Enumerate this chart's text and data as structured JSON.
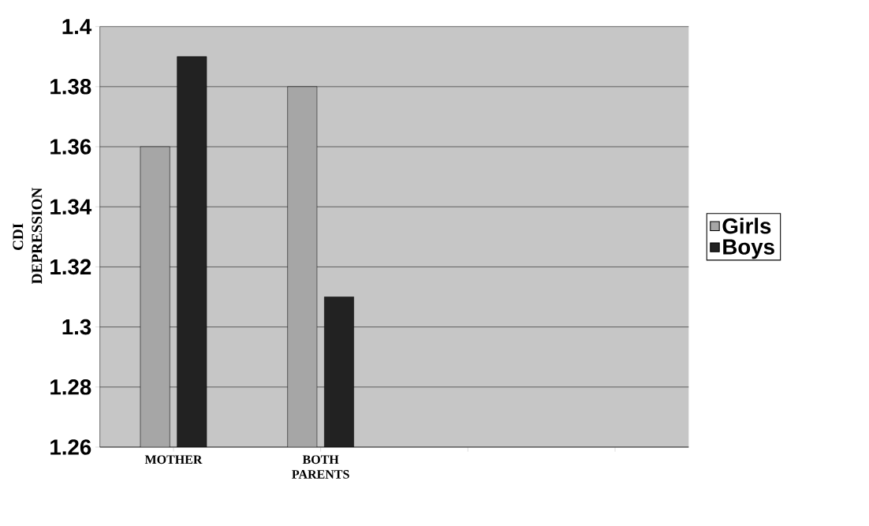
{
  "chart_data": {
    "type": "bar",
    "ylabel": "CDI DEPRESSION",
    "categories": [
      "MOTHER",
      "BOTH PARENTS",
      null,
      null
    ],
    "series": [
      {
        "name": "Girls",
        "color": "#a6a6a6",
        "values": [
          1.36,
          1.38,
          null,
          null
        ]
      },
      {
        "name": "Boys",
        "color": "#222222",
        "values": [
          1.39,
          1.31,
          null,
          null
        ]
      }
    ],
    "ylim": [
      1.26,
      1.4
    ],
    "yticks": [
      1.26,
      1.28,
      1.3,
      1.32,
      1.34,
      1.36,
      1.38,
      1.4
    ],
    "grid": "y",
    "legend": "right"
  }
}
